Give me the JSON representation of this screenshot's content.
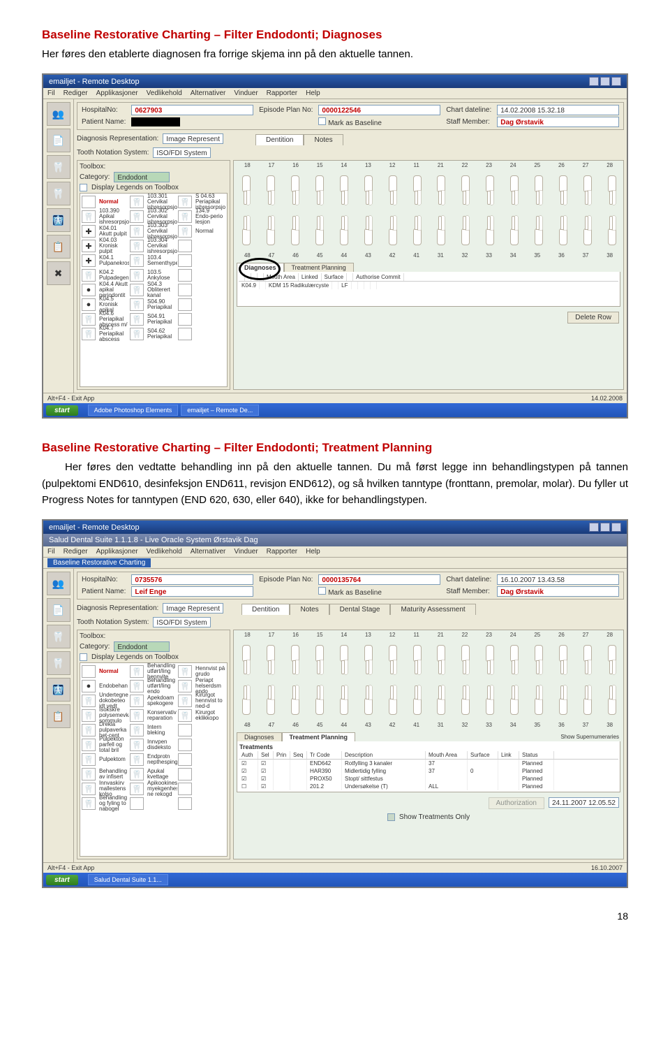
{
  "heading1": "Baseline Restorative Charting – Filter Endodonti; Diagnoses",
  "para1": "Her føres den etablerte diagnosen fra forrige skjema inn på den aktuelle tannen.",
  "heading2": "Baseline Restorative Charting – Filter Endodonti; Treatment Planning",
  "para2": "Her føres den vedtatte behandling inn på den aktuelle tannen. Du må først legge inn behandlingstypen på tannen (pulpektomi END610, desinfeksjon END611, revisjon END612), og så hvilken tanntype (fronttann, premolar, molar). Du fyller ut Progress Notes for tanntypen (END 620, 630, eller 640), ikke for behandlingstypen.",
  "page_number": "18",
  "shot1": {
    "title": "emailjet - Remote Desktop",
    "menubar": [
      "Fil",
      "Rediger",
      "Applikasjoner",
      "Vedlikehold",
      "Alternativer",
      "Vinduer",
      "Rapporter",
      "Help"
    ],
    "nav_icons": [
      "👥",
      "📄",
      "🦷",
      "🦷",
      "🩻",
      "📋",
      "✖"
    ],
    "info": {
      "section": "Patient / Chart Information",
      "hospno_label": "HospitalNo:",
      "hospno": "0627903",
      "name_label": "Patient Name:",
      "epno_label": "Episode Plan No:",
      "epno": "0000122546",
      "mark_label": "Mark as Baseline",
      "chartdate_label": "Chart dateline:",
      "chartdate": "14.02.2008 15.32.18",
      "staff_label": "Staff Member:",
      "staff": "Dag Ørstavik"
    },
    "rep_label": "Diagnosis Representation:",
    "rep_val": "Image Represent",
    "notation_label": "Tooth Notation System:",
    "notation_val": "ISO/FDI System",
    "tabs": [
      "Dentition",
      "Notes"
    ],
    "toolbox_label": "Toolbox:",
    "category_label": "Category:",
    "category_val": "Endodont",
    "legend_label": "Display Legends on Toolbox",
    "toolbox": [
      {
        "i": "",
        "t": "Normal",
        "c": "red"
      },
      {
        "i": "🦷",
        "t": "103.301 Cervikal ishresorpsjon"
      },
      {
        "i": "🦷",
        "t": "S 04.63 Periapikal ishresorpsjon"
      },
      {
        "i": "🦷",
        "t": "103.390 Apikal ishresorpsjon"
      },
      {
        "i": "🦷",
        "t": "103.302 Cervikal ishresorpsjon"
      },
      {
        "i": "🦷",
        "t": "134.9 Endo-perio lesjon"
      },
      {
        "i": "✚",
        "t": "K04.01 Akutt pulpit"
      },
      {
        "i": "🦷",
        "t": "103.303 Cervikal ishresorpsjon"
      },
      {
        "i": "🦷",
        "t": "Normal"
      },
      {
        "i": "✚",
        "t": "K04.03 Kronisk pulpit"
      },
      {
        "i": "🦷",
        "t": "103.304 Cervikal ishresorpsjon"
      },
      {
        "i": "",
        "t": ""
      },
      {
        "i": "✚",
        "t": "K04.1 Pulpanekros"
      },
      {
        "i": "🦷",
        "t": "103.4 Sementhype"
      },
      {
        "i": "",
        "t": ""
      },
      {
        "i": "🦷",
        "t": "K04.2 Pulpadegen"
      },
      {
        "i": "🦷",
        "t": "103.5 Ankylose"
      },
      {
        "i": "",
        "t": ""
      },
      {
        "i": "●",
        "t": "K04.4 Akutt apikal periodontit"
      },
      {
        "i": "🦷",
        "t": "S04.3 Obliterert kanal"
      },
      {
        "i": "",
        "t": ""
      },
      {
        "i": "●",
        "t": "K04.5 Kronisk apikal"
      },
      {
        "i": "🦷",
        "t": "S04.90 Periapikal"
      },
      {
        "i": "",
        "t": ""
      },
      {
        "i": "🦷",
        "t": "K04.6 Periapikal abscess m/"
      },
      {
        "i": "🦷",
        "t": "S04.91 Periapikal"
      },
      {
        "i": "",
        "t": ""
      },
      {
        "i": "🦷",
        "t": "K04.7 Periapikal abscess"
      },
      {
        "i": "🦷",
        "t": "S04.62 Periapikal"
      },
      {
        "i": "",
        "t": ""
      }
    ],
    "upper": [
      "18",
      "17",
      "16",
      "15",
      "14",
      "13",
      "12",
      "11",
      "21",
      "22",
      "23",
      "24",
      "25",
      "26",
      "27",
      "28"
    ],
    "lower": [
      "48",
      "47",
      "46",
      "45",
      "44",
      "43",
      "42",
      "41",
      "31",
      "32",
      "33",
      "34",
      "35",
      "36",
      "37",
      "38"
    ],
    "dx_tabs": [
      "Diagnoses",
      "Treatment Planning"
    ],
    "dx_head": [
      "",
      "",
      "",
      "",
      "Mouth Area",
      "Linked",
      "Surface",
      "",
      "Authorise  Commit"
    ],
    "dx_row": [
      "K04.9",
      "",
      "KDM 15 Radikulærcyste",
      "",
      "LF",
      "",
      "",
      "",
      ""
    ],
    "delete_btn": "Delete Row",
    "status_l": "Alt+F4 - Exit App",
    "status_r": "14.02.2008",
    "task": [
      "Adobe Photoshop Elements",
      "emailjet – Remote De..."
    ]
  },
  "shot2": {
    "title": "emailjet - Remote Desktop",
    "inner_title": "Salud Dental Suite 1.1.1.8 - Live Oracle System Ørstavik Dag",
    "menubar": [
      "Fil",
      "Rediger",
      "Applikasjoner",
      "Vedlikehold",
      "Alternativer",
      "Vinduer",
      "Rapporter",
      "Help"
    ],
    "subwin": "Baseline Restorative Charting",
    "nav_icons": [
      "👥",
      "📄",
      "🦷",
      "🦷",
      "🩻",
      "📋"
    ],
    "info": {
      "section": "Patient / Chart Information",
      "hospno_label": "HospitalNo:",
      "hospno": "0735576",
      "name_label": "Patient Name:",
      "name": "Leif Enge",
      "epno_label": "Episode Plan No:",
      "epno": "0000135764",
      "mark_label": "Mark as Baseline",
      "chartdate_label": "Chart dateline:",
      "chartdate": "16.10.2007 13.43.58",
      "staff_label": "Staff Member:",
      "staff": "Dag Ørstavik"
    },
    "rep_label": "Diagnosis Representation:",
    "rep_val": "Image Represent",
    "notation_label": "Tooth Notation System:",
    "notation_val": "ISO/FDI System",
    "tabs": [
      "Dentition",
      "Notes",
      "Dental Stage",
      "Maturity Assessment"
    ],
    "toolbox_label": "Toolbox:",
    "category_label": "Category:",
    "category_val": "Endodont",
    "legend_label": "Display Legends on Toolbox",
    "toolbox": [
      {
        "i": "",
        "t": "Normal",
        "c": "red"
      },
      {
        "i": "🦷",
        "t": "Behandling utført/ling hennvite"
      },
      {
        "i": "🦷",
        "t": "Hennvist på grudo"
      },
      {
        "i": "●",
        "t": "Endobehan"
      },
      {
        "i": "🦷",
        "t": "Behandling utført/ling endo"
      },
      {
        "i": "🦷",
        "t": "Periapt helserdsm endo"
      },
      {
        "i": "🦷",
        "t": "Undertegne dokobeteo idt vedt"
      },
      {
        "i": "🦷",
        "t": "Apekdoam spekogere"
      },
      {
        "i": "🦷",
        "t": "Kirurgot hennvist to ned-d"
      },
      {
        "i": "🦷",
        "t": "Isokskre polysemevka sommulo"
      },
      {
        "i": "🦷",
        "t": "Konservativ reparation"
      },
      {
        "i": "🦷",
        "t": "Kirurgot eklikkopo"
      },
      {
        "i": "🦷",
        "t": "Drekla pulpaverka het-cent"
      },
      {
        "i": "🦷",
        "t": "Intern bleking"
      },
      {
        "i": "",
        "t": ""
      },
      {
        "i": "🦷",
        "t": "Pulpekton parfell og total bril"
      },
      {
        "i": "🦷",
        "t": "Innvpen disdeksto"
      },
      {
        "i": "",
        "t": ""
      },
      {
        "i": "🦷",
        "t": "Pulpektom"
      },
      {
        "i": "🦷",
        "t": "Endprotn nepthesping"
      },
      {
        "i": "",
        "t": ""
      },
      {
        "i": "🦷",
        "t": "Behandling av infisert"
      },
      {
        "i": "🦷",
        "t": "Apukal kvettage"
      },
      {
        "i": "",
        "t": ""
      },
      {
        "i": "🦷",
        "t": "Innvaskirv mallestens kolso"
      },
      {
        "i": "🦷",
        "t": "Apikookines myekgenhesp ne rekogd"
      },
      {
        "i": "",
        "t": ""
      },
      {
        "i": "🦷",
        "t": "Behandling og fyling to nabogel"
      },
      {
        "i": "",
        "t": ""
      },
      {
        "i": "",
        "t": ""
      }
    ],
    "upper": [
      "18",
      "17",
      "16",
      "15",
      "14",
      "13",
      "12",
      "11",
      "21",
      "22",
      "23",
      "24",
      "25",
      "26",
      "27",
      "28"
    ],
    "lower": [
      "48",
      "47",
      "46",
      "45",
      "44",
      "43",
      "42",
      "41",
      "31",
      "32",
      "33",
      "34",
      "35",
      "36",
      "37",
      "38"
    ],
    "dx_tabs": [
      "Diagnoses",
      "Treatment Planning"
    ],
    "show_sup": "Show Supernumeraries",
    "treat_title": "Treatments",
    "treat_head": [
      "Auth",
      "Sel",
      "Prin",
      "Seq",
      "Tr Code",
      "Description",
      "Mouth Area",
      "Surface",
      "Link",
      "Status"
    ],
    "treat_rows": [
      [
        "☑",
        "☑",
        "",
        "",
        "END642",
        "Rotfylling 3 kanaler",
        "37",
        "",
        "",
        "Planned"
      ],
      [
        "☑",
        "☑",
        "",
        "",
        "HAR390",
        "Midlertidig fylling",
        "37",
        "0",
        "",
        "Planned"
      ],
      [
        "☑",
        "☑",
        "",
        "",
        "PROX50",
        "Stopt/ sittfestus",
        "",
        "",
        "",
        "Planned"
      ],
      [
        "☐",
        "☑",
        "",
        "",
        "201.2",
        "Undersøkelse (T)",
        "ALL",
        "",
        "",
        "Planned"
      ]
    ],
    "auth_btn": "Authorization",
    "date_val": "24.11.2007 12.05.52",
    "show_only": "Show Treatments Only",
    "status_l": "Alt+F4 - Exit App",
    "status_r": "16.10.2007",
    "task": [
      "Salud Dental Suite 1.1..."
    ]
  }
}
